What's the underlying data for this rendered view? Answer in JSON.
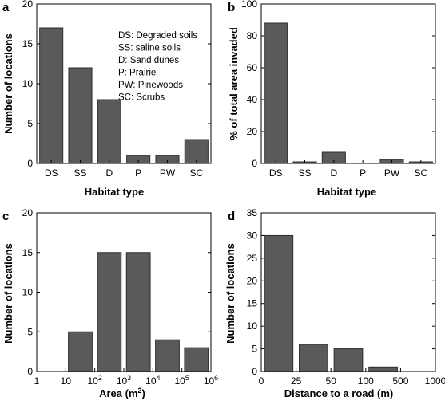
{
  "chart_data": [
    {
      "panel": "a",
      "type": "bar",
      "categories": [
        "DS",
        "SS",
        "D",
        "P",
        "PW",
        "SC"
      ],
      "values": [
        17,
        12,
        8,
        1,
        1,
        3
      ],
      "xlabel": "Habitat type",
      "ylabel": "Number of locations",
      "ylim": [
        0,
        20
      ],
      "yticks": [
        0,
        5,
        10,
        15,
        20
      ],
      "legend_lines": [
        "DS: Degraded soils",
        "SS: saline soils",
        "D: Sand dunes",
        "P: Prairie",
        "PW: Pinewoods",
        "SC: Scrubs"
      ],
      "bar_color": "#5a5a5a"
    },
    {
      "panel": "b",
      "type": "bar",
      "categories": [
        "DS",
        "SS",
        "D",
        "P",
        "PW",
        "SC"
      ],
      "values": [
        88,
        1,
        7,
        0,
        2.5,
        1
      ],
      "xlabel": "Habitat type",
      "ylabel": "% of total area invaded",
      "ylim": [
        0,
        100
      ],
      "yticks": [
        0,
        20,
        40,
        60,
        80,
        100
      ],
      "bar_color": "#5a5a5a"
    },
    {
      "panel": "c",
      "type": "bar",
      "categories": [
        "1-10",
        "10-10^2",
        "10^2-10^3",
        "10^3-10^4",
        "10^4-10^5",
        "10^5-10^6"
      ],
      "values": [
        0,
        5,
        15,
        15,
        4,
        3
      ],
      "xtick_labels": [
        {
          "base": "1",
          "exp": ""
        },
        {
          "base": "10",
          "exp": ""
        },
        {
          "base": "10",
          "exp": "2"
        },
        {
          "base": "10",
          "exp": "3"
        },
        {
          "base": "10",
          "exp": "4"
        },
        {
          "base": "10",
          "exp": "5"
        },
        {
          "base": "10",
          "exp": "6"
        }
      ],
      "xlabel": {
        "base": "Area (m",
        "exp": "2",
        "tail": ")"
      },
      "ylabel": "Number of locations",
      "ylim": [
        0,
        20
      ],
      "yticks": [
        0,
        5,
        10,
        15,
        20
      ],
      "bar_color": "#5a5a5a"
    },
    {
      "panel": "d",
      "type": "bar",
      "categories": [
        "0-25",
        "25-50",
        "50-100",
        "100-500",
        "500-1000"
      ],
      "values": [
        30,
        6,
        5,
        1,
        0
      ],
      "xtick_labels": [
        "0",
        "25",
        "50",
        "100",
        "500",
        "1000"
      ],
      "xlabel": "Distance to a road (m)",
      "ylabel": "Number of locations",
      "ylim": [
        0,
        35
      ],
      "yticks": [
        0,
        5,
        10,
        15,
        20,
        25,
        30,
        35
      ],
      "bar_color": "#5a5a5a"
    }
  ]
}
